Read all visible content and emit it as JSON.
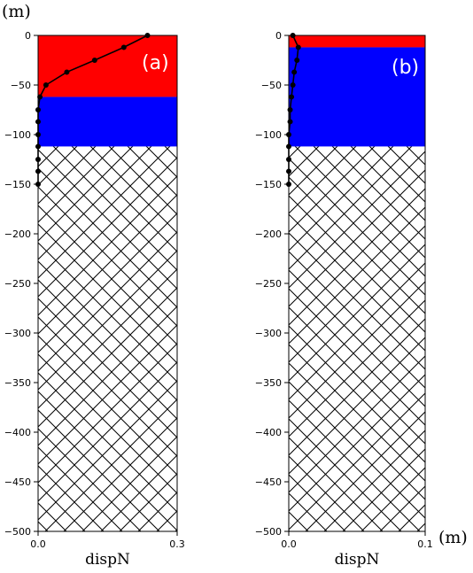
{
  "labels": {
    "unit_top": "(m)",
    "unit_right": "(m)"
  },
  "chart_data": [
    {
      "type": "line",
      "panel_label": "(a)",
      "xlabel": "dispN",
      "ylabel": "",
      "xlim": [
        0,
        0.3
      ],
      "ylim": [
        -500,
        0
      ],
      "x_ticks": [
        0.0,
        0.3
      ],
      "x_tick_labels": [
        "0.0",
        "0.3"
      ],
      "y_ticks": [
        0,
        -50,
        -100,
        -150,
        -200,
        -250,
        -300,
        -350,
        -400,
        -450,
        -500
      ],
      "y_tick_labels": [
        "0",
        "−50",
        "−100",
        "−150",
        "−200",
        "−250",
        "−300",
        "−350",
        "−400",
        "−450",
        "−500"
      ],
      "grid": false,
      "layers": [
        {
          "from": 0,
          "to": -62,
          "fill": "red",
          "color": "#ff0000"
        },
        {
          "from": -62,
          "to": -112,
          "fill": "blue",
          "color": "#0000ff"
        },
        {
          "from": -112,
          "to": -500,
          "fill": "crosshatch",
          "color": "#000000"
        }
      ],
      "series": [
        {
          "x": [
            0.236,
            0.185,
            0.122,
            0.062,
            0.017,
            0.004,
            0.0,
            0.0,
            0.0,
            0.0,
            0.0,
            0.0,
            0.0
          ],
          "y": [
            0,
            -12,
            -25,
            -37,
            -50,
            -62,
            -75,
            -87,
            -100,
            -112,
            -125,
            -137,
            -150
          ],
          "line_color": "#000000",
          "marker": "dot"
        }
      ]
    },
    {
      "type": "line",
      "panel_label": "(b)",
      "xlabel": "dispN",
      "ylabel": "",
      "xlim": [
        0,
        0.1
      ],
      "ylim": [
        -500,
        0
      ],
      "x_ticks": [
        0.0,
        0.1
      ],
      "x_tick_labels": [
        "0.0",
        "0.1"
      ],
      "y_ticks": [
        0,
        -50,
        -100,
        -150,
        -200,
        -250,
        -300,
        -350,
        -400,
        -450,
        -500
      ],
      "y_tick_labels": [
        "0",
        "−50",
        "−100",
        "−150",
        "−200",
        "−250",
        "−300",
        "−350",
        "−400",
        "−450",
        "−500"
      ],
      "grid": false,
      "layers": [
        {
          "from": 0,
          "to": -12,
          "fill": "red",
          "color": "#ff0000"
        },
        {
          "from": -12,
          "to": -112,
          "fill": "blue",
          "color": "#0000ff"
        },
        {
          "from": -112,
          "to": -500,
          "fill": "crosshatch",
          "color": "#000000"
        }
      ],
      "series": [
        {
          "x": [
            0.003,
            0.007,
            0.006,
            0.004,
            0.003,
            0.002,
            0.001,
            0.001,
            0.0,
            0.0,
            0.0,
            0.0,
            0.0
          ],
          "y": [
            0,
            -12,
            -25,
            -37,
            -50,
            -62,
            -75,
            -87,
            -100,
            -112,
            -125,
            -137,
            -150
          ],
          "line_color": "#000000",
          "marker": "dot"
        }
      ]
    }
  ]
}
